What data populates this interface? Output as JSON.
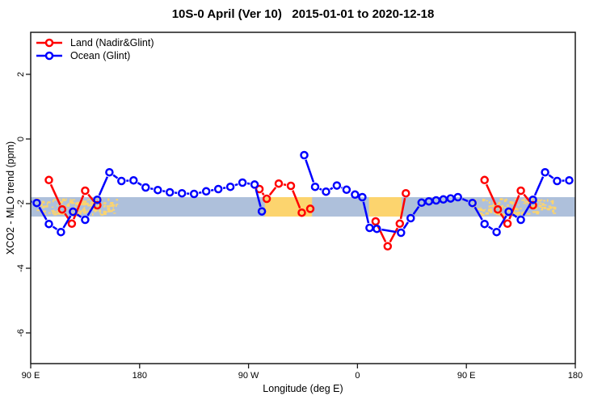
{
  "chart_data": {
    "type": "line",
    "title": "10S-0 April (Ver 10)   2015-01-01 to 2020-12-18",
    "xlabel": "Longitude (deg E)",
    "ylabel": "XCO2 - MLO trend (ppm)",
    "xlim": [
      90,
      540
    ],
    "ylim": [
      -6.95,
      3.3
    ],
    "x_ticks": [
      {
        "pos": 90,
        "label": "90 E"
      },
      {
        "pos": 180,
        "label": "180"
      },
      {
        "pos": 270,
        "label": "90 W"
      },
      {
        "pos": 360,
        "label": "0"
      },
      {
        "pos": 450,
        "label": "90 E"
      },
      {
        "pos": 540,
        "label": "180"
      }
    ],
    "y_ticks": [
      {
        "pos": 2,
        "label": "2"
      },
      {
        "pos": 0,
        "label": "0"
      },
      {
        "pos": -2,
        "label": "-2"
      },
      {
        "pos": -4,
        "label": "-4"
      },
      {
        "pos": -6,
        "label": "-6"
      }
    ],
    "band": {
      "y_from": -1.8,
      "y_to": -2.4,
      "color": "#aec0db"
    },
    "land_overlay": {
      "color": "#fcd46e",
      "segments": [
        {
          "from": 94,
          "to": 162,
          "style": "islands"
        },
        {
          "from": 283.5,
          "to": 322.5,
          "style": "solid"
        },
        {
          "from": 369.5,
          "to": 396.5,
          "style": "solid"
        },
        {
          "from": 454,
          "to": 522,
          "style": "islands"
        }
      ]
    },
    "series": [
      {
        "name": "Land (Nadir&Glint)",
        "color": "#ff0000",
        "marker": "open-circle",
        "segments": [
          [
            [
              105,
              -1.27
            ],
            [
              116,
              -2.18
            ],
            [
              124,
              -2.62
            ],
            [
              135,
              -1.6
            ],
            [
              145,
              -2.05
            ]
          ],
          [
            [
              279,
              -1.55
            ],
            [
              285,
              -1.85
            ],
            [
              295,
              -1.38
            ],
            [
              305,
              -1.45
            ],
            [
              314,
              -2.28
            ],
            [
              321,
              -2.16
            ]
          ],
          [
            [
              375,
              -2.55
            ],
            [
              385,
              -3.32
            ],
            [
              395,
              -2.62
            ],
            [
              400,
              -1.68
            ]
          ],
          [
            [
              465,
              -1.27
            ],
            [
              476,
              -2.18
            ],
            [
              484,
              -2.62
            ],
            [
              495,
              -1.6
            ],
            [
              505,
              -2.05
            ]
          ]
        ]
      },
      {
        "name": "Ocean (Glint)",
        "color": "#0000ff",
        "marker": "open-circle",
        "segments": [
          [
            [
              85,
              -1.9
            ],
            [
              95,
              -1.98
            ],
            [
              105,
              -2.63
            ],
            [
              115,
              -2.88
            ],
            [
              125,
              -2.25
            ],
            [
              135,
              -2.5
            ],
            [
              145,
              -1.88
            ],
            [
              155,
              -1.03
            ],
            [
              165,
              -1.3
            ],
            [
              175,
              -1.28
            ],
            [
              185,
              -1.5
            ],
            [
              195,
              -1.58
            ],
            [
              205,
              -1.65
            ],
            [
              215,
              -1.68
            ],
            [
              225,
              -1.7
            ],
            [
              235,
              -1.62
            ],
            [
              245,
              -1.55
            ],
            [
              255,
              -1.48
            ],
            [
              265,
              -1.35
            ],
            [
              275,
              -1.41
            ],
            [
              281,
              -2.24
            ]
          ],
          [
            [
              316,
              -0.5
            ],
            [
              325,
              -1.48
            ],
            [
              334,
              -1.63
            ],
            [
              343,
              -1.44
            ],
            [
              351,
              -1.57
            ],
            [
              358,
              -1.72
            ],
            [
              364,
              -1.8
            ],
            [
              370,
              -2.75
            ],
            [
              376,
              -2.78
            ],
            [
              396,
              -2.9
            ],
            [
              404,
              -2.45
            ],
            [
              413,
              -1.97
            ],
            [
              419,
              -1.93
            ],
            [
              425,
              -1.9
            ],
            [
              431,
              -1.87
            ],
            [
              437,
              -1.84
            ],
            [
              443,
              -1.8
            ],
            [
              455,
              -1.98
            ],
            [
              465,
              -2.63
            ],
            [
              475,
              -2.88
            ],
            [
              485,
              -2.25
            ],
            [
              495,
              -2.5
            ],
            [
              505,
              -1.88
            ],
            [
              515,
              -1.03
            ],
            [
              525,
              -1.3
            ],
            [
              535,
              -1.28
            ]
          ]
        ]
      }
    ]
  }
}
